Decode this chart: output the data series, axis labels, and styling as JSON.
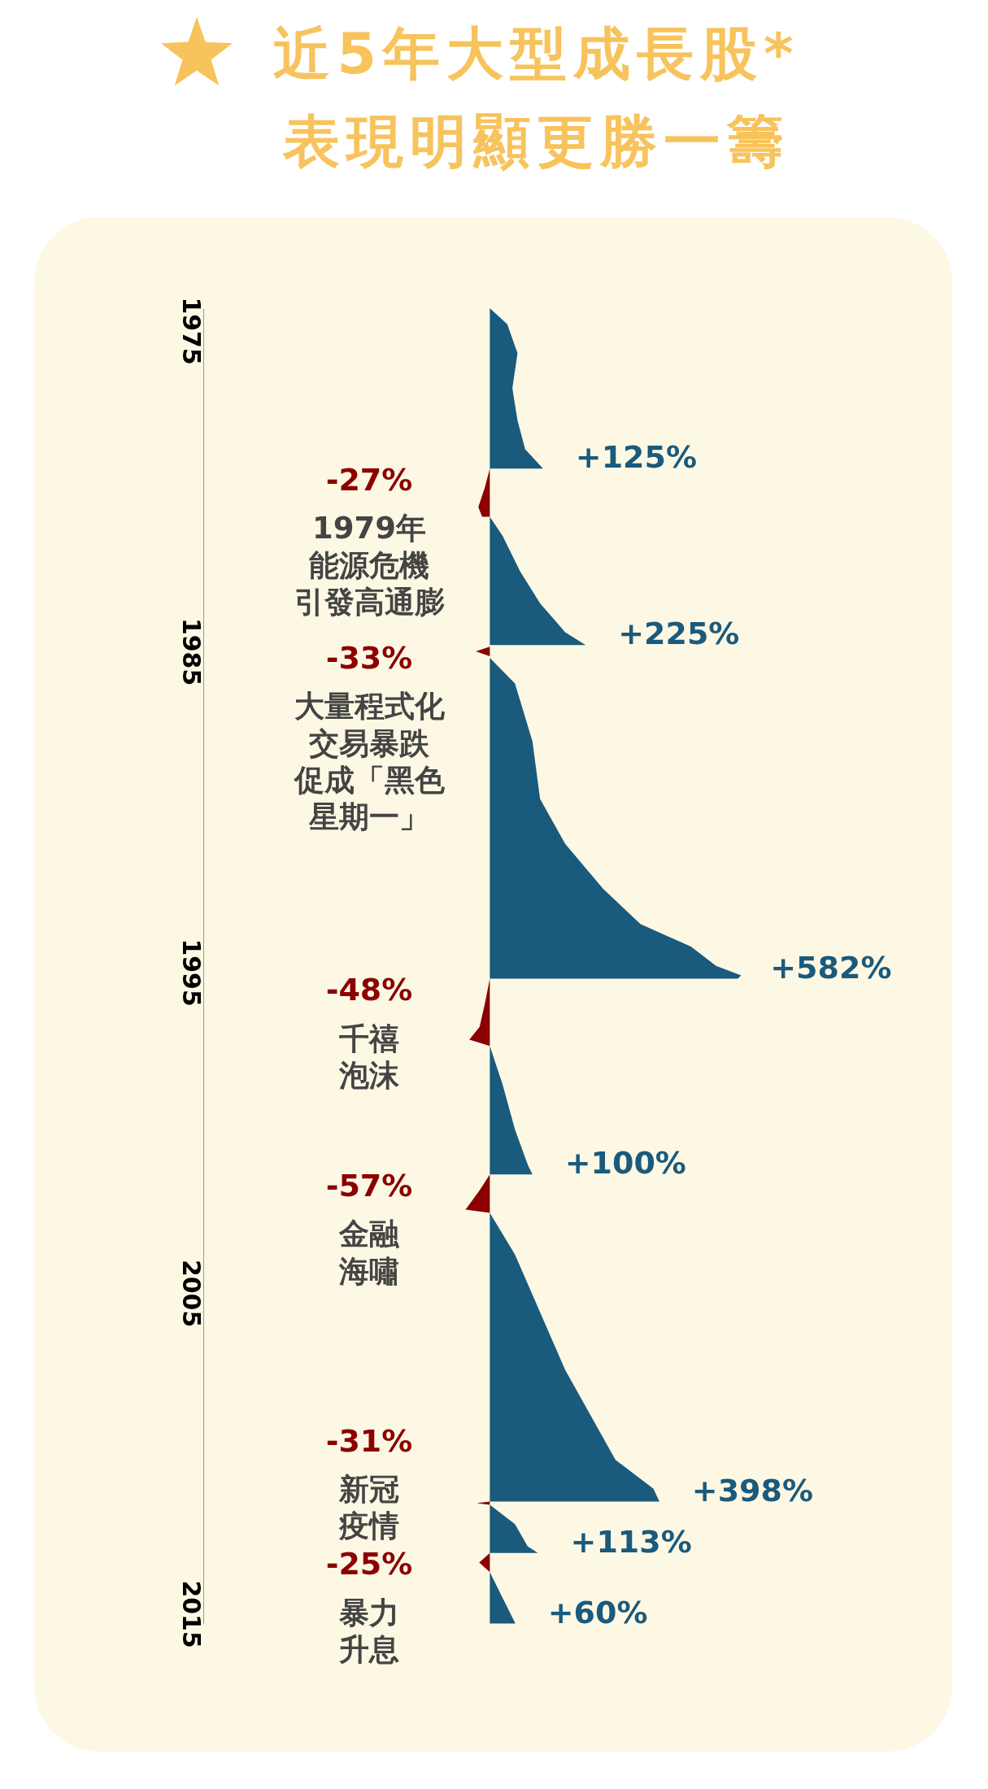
{
  "chart_data": {
    "type": "area",
    "title": "近5年大型成長股*\n表現明顯更勝一籌",
    "orientation": "horizontal",
    "grid": false,
    "legend": false,
    "tick_labels": "y",
    "ylim": [
      2015.3,
      1974.3
    ],
    "yticks": [
      1975,
      1985,
      1995,
      2005,
      2015
    ],
    "series": [
      {
        "color": "#1a5a7d",
        "x": [
          1974.3,
          1974.8,
          1975.7,
          1976.8,
          1977.8,
          1978.7,
          1979.3
        ],
        "values": [
          0,
          41,
          65,
          53,
          65,
          83,
          125
        ],
        "value_labels": [
          null,
          null,
          null,
          null,
          null,
          null,
          "+125%"
        ]
      },
      {
        "color": "#8b0000",
        "x": [
          1979.3,
          1979.9,
          1980.5,
          1980.8
        ],
        "values": [
          0,
          -12,
          -27,
          -18
        ],
        "value_labels": [
          null,
          null,
          "-27%",
          null
        ]
      },
      {
        "color": "#1a5a7d",
        "x": [
          1980.8,
          1981.4,
          1982.5,
          1983.5,
          1984.4,
          1984.8
        ],
        "values": [
          0,
          30,
          71,
          118,
          177,
          225
        ],
        "value_labels": [
          null,
          null,
          null,
          null,
          null,
          "+225%"
        ]
      },
      {
        "color": "#8b0000",
        "x": [
          1984.85,
          1985.0,
          1985.15
        ],
        "values": [
          0,
          -33,
          0
        ],
        "value_labels": [
          null,
          "-33%",
          null
        ]
      },
      {
        "color": "#1a5a7d",
        "x": [
          1985.2,
          1986.0,
          1987.8,
          1989.6,
          1991.0,
          1992.4,
          1993.5,
          1994.2,
          1994.8,
          1995.1,
          1995.2
        ],
        "values": [
          0,
          59,
          100,
          118,
          177,
          266,
          354,
          472,
          531,
          590,
          582
        ],
        "value_labels": [
          null,
          null,
          null,
          null,
          null,
          null,
          null,
          null,
          null,
          null,
          "+582%"
        ]
      },
      {
        "color": "#8b0000",
        "x": [
          1995.2,
          1996.0,
          1996.7,
          1997.1,
          1997.3
        ],
        "values": [
          0,
          -12,
          -24,
          -48,
          0
        ],
        "value_labels": [
          null,
          null,
          null,
          "-48%",
          null
        ]
      },
      {
        "color": "#1a5a7d",
        "x": [
          1997.3,
          1998.5,
          1999.9,
          2001.0,
          2001.3
        ],
        "values": [
          0,
          30,
          59,
          89,
          100
        ],
        "value_labels": [
          null,
          null,
          null,
          null,
          "+100%"
        ]
      },
      {
        "color": "#8b0000",
        "x": [
          2001.3,
          2001.8,
          2002.4,
          2002.5
        ],
        "values": [
          0,
          -24,
          -57,
          0
        ],
        "value_labels": [
          null,
          null,
          "-57%",
          null
        ]
      },
      {
        "color": "#1a5a7d",
        "x": [
          2002.5,
          2003.8,
          2005.6,
          2007.4,
          2008.8,
          2010.2,
          2011.1,
          2011.5
        ],
        "values": [
          0,
          59,
          118,
          177,
          236,
          295,
          384,
          398
        ],
        "value_labels": [
          null,
          null,
          null,
          null,
          null,
          null,
          null,
          "+398%"
        ]
      },
      {
        "color": "#8b0000",
        "x": [
          2011.5,
          2011.55,
          2011.6
        ],
        "values": [
          0,
          -31,
          0
        ],
        "value_labels": [
          null,
          "-31%",
          null
        ]
      },
      {
        "color": "#1a5a7d",
        "x": [
          2011.6,
          2012.2,
          2012.9,
          2013.1
        ],
        "values": [
          0,
          59,
          89,
          113
        ],
        "value_labels": [
          null,
          null,
          null,
          "+113%"
        ]
      },
      {
        "color": "#8b0000",
        "x": [
          2013.1,
          2013.4,
          2013.7
        ],
        "values": [
          0,
          -25,
          0
        ],
        "value_labels": [
          null,
          "-25%",
          null
        ]
      },
      {
        "color": "#1a5a7d",
        "x": [
          2013.7,
          2014.5,
          2015.3
        ],
        "values": [
          0,
          30,
          60
        ],
        "value_labels": [
          null,
          null,
          "+60%"
        ]
      }
    ],
    "annotations": [
      "1979年能源危機引發高通膨",
      "大量程式化交易暴跌促成「黑色星期一」",
      "千禧泡沫",
      "金融海嘯",
      "新冠疫情",
      "暴力升息"
    ]
  }
}
